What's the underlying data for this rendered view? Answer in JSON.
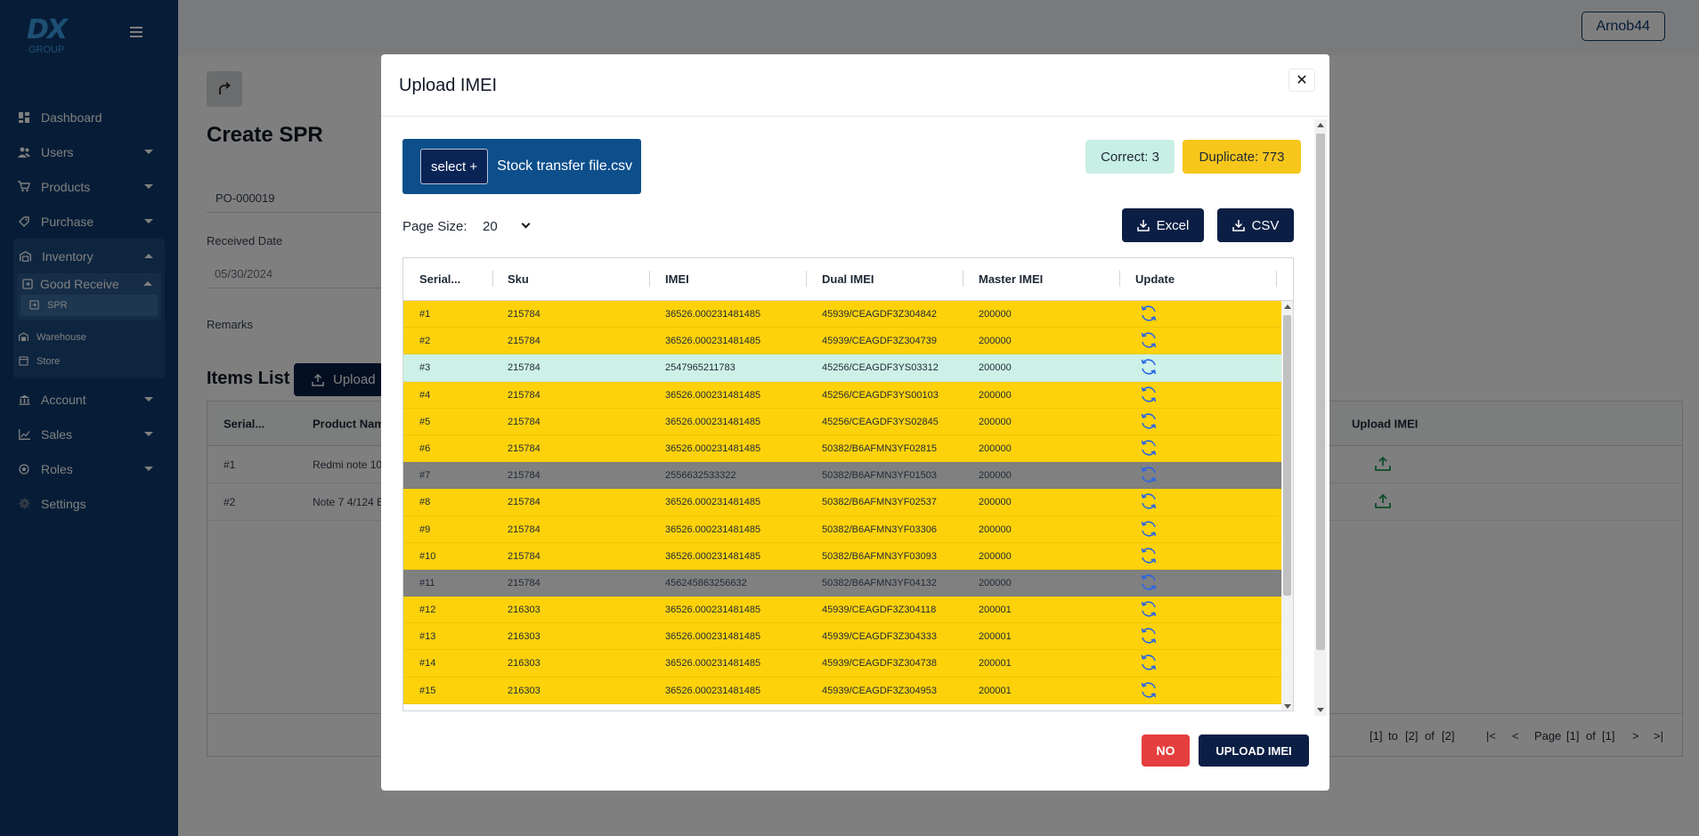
{
  "brand": {
    "logo_text": "DX",
    "logo_sub": "GROUP"
  },
  "sidebar": {
    "items": [
      {
        "label": "Dashboard"
      },
      {
        "label": "Users"
      },
      {
        "label": "Products"
      },
      {
        "label": "Purchase"
      },
      {
        "label": "Inventory"
      },
      {
        "label": "Account"
      },
      {
        "label": "Sales"
      },
      {
        "label": "Roles"
      },
      {
        "label": "Settings"
      }
    ],
    "inventory_sub": {
      "good_receive": "Good Receive",
      "spr": "SPR",
      "warehouse": "Warehouse",
      "store": "Store"
    }
  },
  "header": {
    "user": "Arnob44"
  },
  "page": {
    "title": "Create SPR",
    "po_number": "PO-000019",
    "received_date_label": "Received Date",
    "received_date": "05/30/2024",
    "remarks_label": "Remarks",
    "items_title": "Items List",
    "upload_label": "Upload",
    "items_columns": {
      "serial": "Serial...",
      "product": "Product Nam",
      "upload_imei": "Upload IMEI"
    },
    "items_rows": [
      {
        "serial": "#1",
        "product": "Redmi note 10"
      },
      {
        "serial": "#2",
        "product": "Note 7 4/124 E"
      }
    ],
    "pagination": {
      "range_a": "[1]",
      "to": "to",
      "range_b": "[2]",
      "of": "of",
      "total": "[2]",
      "page_label": "Page",
      "page": "[1]",
      "of2": "of",
      "pages": "[1]"
    }
  },
  "modal": {
    "title": "Upload IMEI",
    "select_label": "select +",
    "file_name": "Stock transfer file.csv",
    "correct": "Correct: 3",
    "duplicate": "Duplicate: 773",
    "page_size_label": "Page Size:",
    "page_size": "20",
    "excel_label": "Excel",
    "csv_label": "CSV",
    "columns": {
      "serial": "Serial...",
      "sku": "Sku",
      "imei": "IMEI",
      "dual": "Dual IMEI",
      "master": "Master IMEI",
      "update": "Update"
    },
    "rows": [
      {
        "serial": "#1",
        "sku": "215784",
        "imei": "36526.000231481485",
        "dual": "45939/CEAGDF3Z304842",
        "master": "200000",
        "status": "duplicate"
      },
      {
        "serial": "#2",
        "sku": "215784",
        "imei": "36526.000231481485",
        "dual": "45939/CEAGDF3Z304739",
        "master": "200000",
        "status": "duplicate"
      },
      {
        "serial": "#3",
        "sku": "215784",
        "imei": "2547965211783",
        "dual": "45256/CEAGDF3YS03312",
        "master": "200000",
        "status": "correct"
      },
      {
        "serial": "#4",
        "sku": "215784",
        "imei": "36526.000231481485",
        "dual": "45256/CEAGDF3YS00103",
        "master": "200000",
        "status": "duplicate"
      },
      {
        "serial": "#5",
        "sku": "215784",
        "imei": "36526.000231481485",
        "dual": "45256/CEAGDF3YS02845",
        "master": "200000",
        "status": "duplicate"
      },
      {
        "serial": "#6",
        "sku": "215784",
        "imei": "36526.000231481485",
        "dual": "50382/B6AFMN3YF02815",
        "master": "200000",
        "status": "duplicate"
      },
      {
        "serial": "#7",
        "sku": "215784",
        "imei": "2556632533322",
        "dual": "50382/B6AFMN3YF01503",
        "master": "200000",
        "status": "invalid"
      },
      {
        "serial": "#8",
        "sku": "215784",
        "imei": "36526.000231481485",
        "dual": "50382/B6AFMN3YF02537",
        "master": "200000",
        "status": "duplicate"
      },
      {
        "serial": "#9",
        "sku": "215784",
        "imei": "36526.000231481485",
        "dual": "50382/B6AFMN3YF03306",
        "master": "200000",
        "status": "duplicate"
      },
      {
        "serial": "#10",
        "sku": "215784",
        "imei": "36526.000231481485",
        "dual": "50382/B6AFMN3YF03093",
        "master": "200000",
        "status": "duplicate"
      },
      {
        "serial": "#11",
        "sku": "215784",
        "imei": "456245863256632",
        "dual": "50382/B6AFMN3YF04132",
        "master": "200000",
        "status": "invalid"
      },
      {
        "serial": "#12",
        "sku": "216303",
        "imei": "36526.000231481485",
        "dual": "45939/CEAGDF3Z304118",
        "master": "200001",
        "status": "duplicate"
      },
      {
        "serial": "#13",
        "sku": "216303",
        "imei": "36526.000231481485",
        "dual": "45939/CEAGDF3Z304333",
        "master": "200001",
        "status": "duplicate"
      },
      {
        "serial": "#14",
        "sku": "216303",
        "imei": "36526.000231481485",
        "dual": "45939/CEAGDF3Z304738",
        "master": "200001",
        "status": "duplicate"
      },
      {
        "serial": "#15",
        "sku": "216303",
        "imei": "36526.000231481485",
        "dual": "45939/CEAGDF3Z304953",
        "master": "200001",
        "status": "duplicate"
      }
    ],
    "no_label": "NO",
    "upload_imei_label": "UPLOAD IMEI"
  },
  "colors": {
    "duplicate": "#fdd20a",
    "correct": "#cdf1e6",
    "invalid": "#808080",
    "navy": "#0b1f45",
    "sidebar": "#0e3a6e"
  }
}
